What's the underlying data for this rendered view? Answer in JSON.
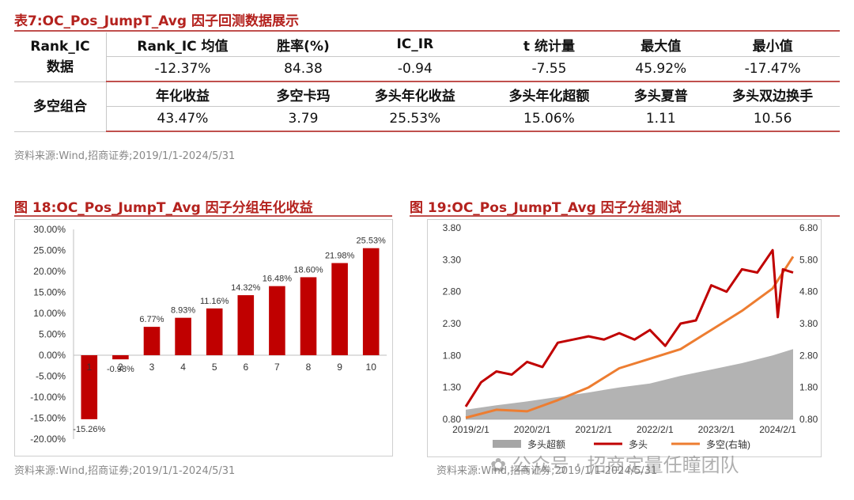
{
  "table7": {
    "title": "表7:OC_Pos_JumpT_Avg 因子回测数据展示",
    "rank_ic": {
      "group_label": "Rank_IC\n数据",
      "headers": [
        "Rank_IC 均值",
        "胜率(%)",
        "IC_IR",
        "t 统计量",
        "最大值",
        "最小值"
      ],
      "values": [
        "-12.37%",
        "84.38",
        "-0.94",
        "-7.55",
        "45.92%",
        "-17.47%"
      ]
    },
    "long_short": {
      "group_label": "多空组合",
      "headers": [
        "年化收益",
        "多空卡玛",
        "多头年化收益",
        "多头年化超额",
        "多头夏普",
        "多头双边换手"
      ],
      "values": [
        "43.47%",
        "3.79",
        "25.53%",
        "15.06%",
        "1.11",
        "10.56"
      ]
    },
    "source": "资料来源:Wind,招商证券;2019/1/1-2024/5/31"
  },
  "fig18": {
    "title": "图 18:OC_Pos_JumpT_Avg 因子分组年化收益",
    "source": "资料来源:Wind,招商证券;2019/1/1-2024/5/31"
  },
  "fig19": {
    "title": "图 19:OC_Pos_JumpT_Avg 因子分组测试",
    "source": "资料来源:Wind,招商证券;2019/1/1-2024/5/31"
  },
  "watermark": "公众号 · 招商定量任瞳团队",
  "colors": {
    "accent": "#b4221e",
    "bar": "#c00000",
    "long": "#c00000",
    "long_short": "#ed7d31",
    "excess": "#a6a6a6"
  },
  "chart_data": [
    {
      "type": "bar",
      "categories": [
        "1",
        "2",
        "3",
        "4",
        "5",
        "6",
        "7",
        "8",
        "9",
        "10"
      ],
      "values": [
        -15.26,
        -0.98,
        6.77,
        8.93,
        11.16,
        14.32,
        16.48,
        18.6,
        21.98,
        25.53
      ],
      "data_labels": [
        "-15.26%",
        "-0.98%",
        "6.77%",
        "8.93%",
        "11.16%",
        "14.32%",
        "16.48%",
        "18.60%",
        "21.98%",
        "25.53%"
      ],
      "yticks": [
        "30.00%",
        "25.00%",
        "20.00%",
        "15.00%",
        "10.00%",
        "5.00%",
        "0.00%",
        "-5.00%",
        "-10.00%",
        "-15.00%",
        "-20.00%"
      ],
      "ylim": [
        -20,
        30
      ],
      "grid": false,
      "xlabel": "",
      "ylabel": ""
    },
    {
      "type": "line",
      "x_ticks": [
        "2019/2/1",
        "2020/2/1",
        "2021/2/1",
        "2022/2/1",
        "2023/2/1",
        "2024/2/1"
      ],
      "y_left_ticks": [
        "3.80",
        "3.30",
        "2.80",
        "2.30",
        "1.80",
        "1.30",
        "0.80"
      ],
      "y_right_ticks": [
        "6.80",
        "5.80",
        "4.80",
        "3.80",
        "2.80",
        "1.80",
        "0.80"
      ],
      "ylim_left": [
        0.8,
        3.8
      ],
      "ylim_right": [
        0.8,
        6.8
      ],
      "legend_position": "bottom",
      "grid": false,
      "series": [
        {
          "name": "多头超额",
          "axis": "left",
          "style": "area",
          "x": [
            "2019/1",
            "2019/7",
            "2020/1",
            "2020/7",
            "2021/1",
            "2021/7",
            "2022/1",
            "2022/7",
            "2023/1",
            "2023/7",
            "2024/1",
            "2024/5"
          ],
          "values": [
            0.95,
            1.02,
            1.08,
            1.15,
            1.22,
            1.3,
            1.36,
            1.48,
            1.58,
            1.68,
            1.8,
            1.9
          ]
        },
        {
          "name": "多头",
          "axis": "left",
          "style": "line",
          "x": [
            "2019/1",
            "2019/4",
            "2019/7",
            "2019/10",
            "2020/1",
            "2020/4",
            "2020/7",
            "2020/10",
            "2021/1",
            "2021/4",
            "2021/7",
            "2021/10",
            "2022/1",
            "2022/4",
            "2022/7",
            "2022/10",
            "2023/1",
            "2023/4",
            "2023/7",
            "2023/10",
            "2024/1",
            "2024/2",
            "2024/3",
            "2024/5"
          ],
          "values": [
            1.0,
            1.38,
            1.55,
            1.5,
            1.7,
            1.62,
            2.0,
            2.05,
            2.1,
            2.05,
            2.15,
            2.05,
            2.2,
            1.95,
            2.3,
            2.35,
            2.9,
            2.8,
            3.15,
            3.1,
            3.45,
            2.4,
            3.15,
            3.1
          ]
        },
        {
          "name": "多空(右轴)",
          "axis": "right",
          "style": "line",
          "x": [
            "2019/1",
            "2019/7",
            "2020/1",
            "2020/7",
            "2021/1",
            "2021/7",
            "2022/1",
            "2022/7",
            "2023/1",
            "2023/7",
            "2024/1",
            "2024/5"
          ],
          "values": [
            0.85,
            1.1,
            1.05,
            1.4,
            1.8,
            2.4,
            2.7,
            3.0,
            3.6,
            4.2,
            4.9,
            5.9
          ]
        }
      ]
    }
  ]
}
